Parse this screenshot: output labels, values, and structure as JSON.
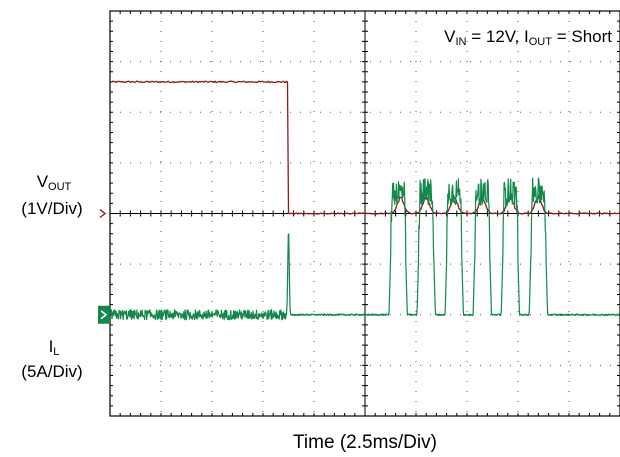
{
  "chart_data": {
    "type": "line",
    "annotation": {
      "v_main": "V",
      "v_sub": "IN",
      "v_rest": " = 12V, ",
      "i_main": "I",
      "i_sub": "OUT",
      "i_rest": " = Short"
    },
    "xlabel": "Time  (2.5ms/Div)",
    "x_divisions": 10,
    "y_divisions": 8,
    "x_unit": "div",
    "ch1": {
      "label_main": "V",
      "label_sub": "OUT",
      "scale": "(1V/Div)",
      "color": "#8B1A1A",
      "ground_div": 4,
      "initial_level_div": 6.6,
      "drop_at_div": 3.5,
      "hiccup_centers_div": [
        5.7,
        6.2,
        6.75,
        7.3,
        7.85,
        8.4
      ],
      "hiccup_peak_div": 0.32
    },
    "ch2": {
      "label_main": "I",
      "label_sub": "L",
      "scale": "(5A/Div)",
      "color": "#12884A",
      "ground_div": 2,
      "noise_band_div": [
        0,
        3.45
      ],
      "spike_at_div": 3.5,
      "spike_peak_div": 3.65,
      "pulse_centers_div": [
        5.65,
        6.2,
        6.75,
        7.3,
        7.85,
        8.4
      ],
      "pulse_width_div": 0.36,
      "pulse_level_div": 2.2
    }
  }
}
